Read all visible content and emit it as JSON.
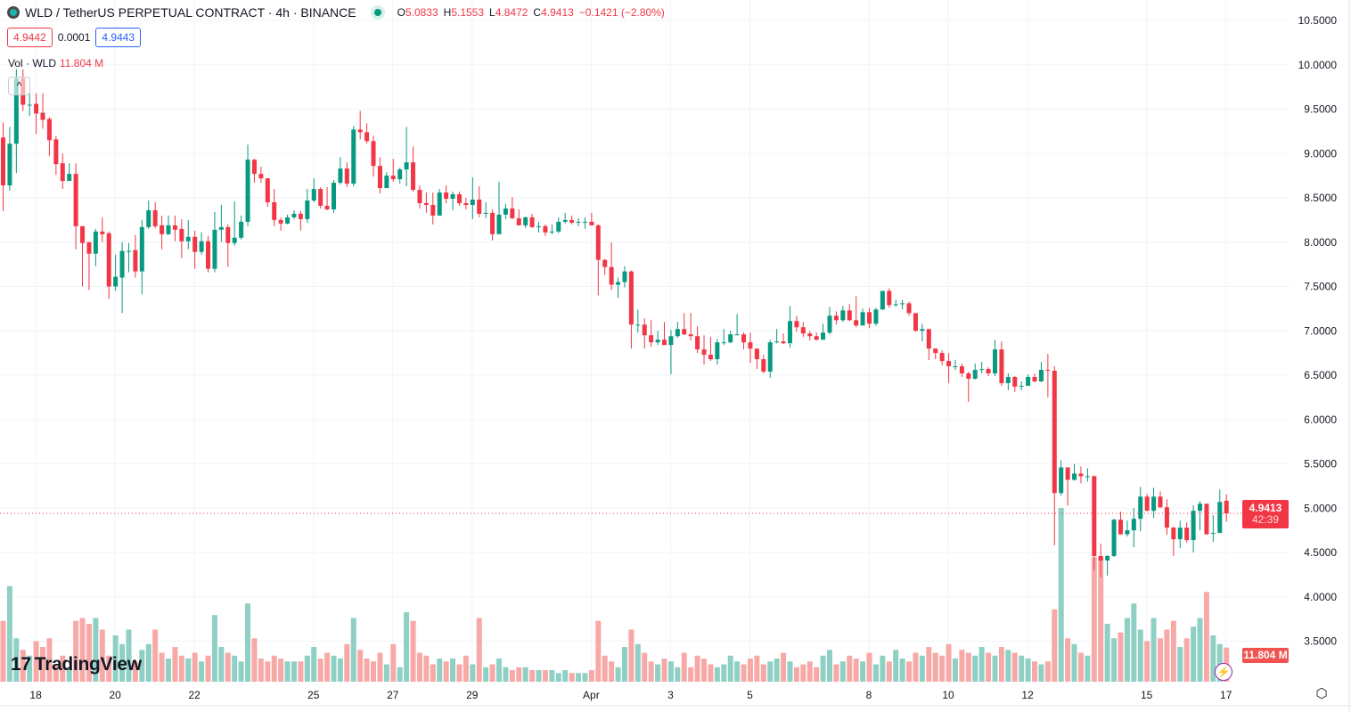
{
  "header": {
    "symbol_title": "WLD / TetherUS PERPETUAL CONTRACT · 4h · BINANCE",
    "ohlc": {
      "o_label": "O",
      "o": "5.0833",
      "h_label": "H",
      "h": "5.1553",
      "l_label": "L",
      "l": "4.8472",
      "c_label": "C",
      "c": "4.9413",
      "change": "−0.1421 (−2.80%)"
    },
    "bid": "4.9442",
    "spread": "0.0001",
    "ask": "4.9443",
    "volume_label": "Vol · WLD",
    "volume_value": "11.804 M",
    "collapse_icon": "^"
  },
  "price_tag": {
    "price": "4.9413",
    "countdown": "42:39"
  },
  "volume_tag": "11.804 M",
  "logo_text": "TradingView",
  "colors": {
    "up": "#089981",
    "down": "#f23645",
    "up_volume": "#8fd0c4",
    "down_volume": "#f7a9a7",
    "grid": "#f0f3fa"
  },
  "chart_data": {
    "type": "candlestick",
    "timeframe": "4h",
    "ylim": [
      3.5,
      10.5
    ],
    "y_ticks": [
      "10.5000",
      "10.0000",
      "9.5000",
      "9.0000",
      "8.5000",
      "8.0000",
      "7.5000",
      "7.0000",
      "6.5000",
      "6.0000",
      "5.5000",
      "5.0000",
      "4.5000",
      "4.0000",
      "3.5000"
    ],
    "x_ticks": [
      {
        "label": "18",
        "index": 5
      },
      {
        "label": "20",
        "index": 17
      },
      {
        "label": "22",
        "index": 29
      },
      {
        "label": "25",
        "index": 47
      },
      {
        "label": "27",
        "index": 59
      },
      {
        "label": "29",
        "index": 71
      },
      {
        "label": "Apr",
        "index": 89
      },
      {
        "label": "3",
        "index": 101
      },
      {
        "label": "5",
        "index": 113
      },
      {
        "label": "8",
        "index": 131
      },
      {
        "label": "10",
        "index": 143
      },
      {
        "label": "12",
        "index": 155
      },
      {
        "label": "15",
        "index": 173
      },
      {
        "label": "17",
        "index": 185
      }
    ],
    "grid": true,
    "ohlc": [
      [
        9.18,
        9.35,
        8.35,
        8.64
      ],
      [
        8.64,
        9.3,
        8.58,
        9.11
      ],
      [
        9.11,
        9.95,
        8.78,
        9.85
      ],
      [
        9.85,
        9.95,
        9.48,
        9.55
      ],
      [
        9.55,
        9.68,
        9.42,
        9.55
      ],
      [
        9.56,
        9.68,
        9.22,
        9.45
      ],
      [
        9.46,
        9.68,
        9.28,
        9.38
      ],
      [
        9.39,
        9.41,
        8.97,
        9.15
      ],
      [
        9.16,
        9.2,
        8.76,
        8.88
      ],
      [
        8.89,
        9.0,
        8.6,
        8.69
      ],
      [
        8.69,
        8.89,
        8.69,
        8.77
      ],
      [
        8.77,
        8.89,
        7.92,
        8.18
      ],
      [
        8.18,
        8.18,
        7.5,
        7.99
      ],
      [
        8.0,
        8.0,
        7.46,
        7.87
      ],
      [
        7.87,
        8.15,
        7.73,
        8.12
      ],
      [
        8.12,
        8.28,
        8.0,
        8.09
      ],
      [
        8.1,
        8.12,
        7.36,
        7.5
      ],
      [
        7.5,
        7.86,
        7.45,
        7.61
      ],
      [
        7.6,
        8.0,
        7.2,
        7.9
      ],
      [
        7.9,
        7.99,
        7.66,
        7.9
      ],
      [
        7.91,
        8.08,
        7.6,
        7.67
      ],
      [
        7.67,
        8.25,
        7.41,
        8.17
      ],
      [
        8.17,
        8.47,
        8.15,
        8.36
      ],
      [
        8.36,
        8.45,
        8.16,
        8.18
      ],
      [
        8.19,
        8.3,
        7.92,
        8.09
      ],
      [
        8.09,
        8.3,
        8.08,
        8.19
      ],
      [
        8.19,
        8.3,
        8.01,
        8.14
      ],
      [
        8.15,
        8.26,
        7.82,
        8.01
      ],
      [
        8.01,
        8.25,
        7.92,
        8.06
      ],
      [
        8.06,
        8.13,
        7.7,
        7.89
      ],
      [
        7.89,
        8.11,
        7.86,
        8.01
      ],
      [
        8.01,
        8.07,
        7.66,
        7.7
      ],
      [
        7.7,
        8.34,
        7.66,
        8.14
      ],
      [
        8.14,
        8.42,
        8.0,
        8.17
      ],
      [
        8.17,
        8.2,
        7.72,
        7.99
      ],
      [
        7.99,
        8.46,
        7.96,
        8.05
      ],
      [
        8.05,
        8.3,
        8.03,
        8.23
      ],
      [
        8.23,
        9.1,
        8.18,
        8.93
      ],
      [
        8.93,
        8.94,
        8.67,
        8.77
      ],
      [
        8.77,
        8.85,
        8.67,
        8.72
      ],
      [
        8.72,
        8.72,
        8.4,
        8.45
      ],
      [
        8.45,
        8.6,
        8.18,
        8.25
      ],
      [
        8.25,
        8.28,
        8.13,
        8.21
      ],
      [
        8.21,
        8.31,
        8.2,
        8.28
      ],
      [
        8.28,
        8.36,
        8.26,
        8.32
      ],
      [
        8.32,
        8.35,
        8.13,
        8.26
      ],
      [
        8.26,
        8.6,
        8.22,
        8.47
      ],
      [
        8.47,
        8.72,
        8.45,
        8.6
      ],
      [
        8.6,
        8.62,
        8.38,
        8.41
      ],
      [
        8.41,
        8.62,
        8.36,
        8.37
      ],
      [
        8.37,
        8.7,
        8.33,
        8.67
      ],
      [
        8.67,
        8.96,
        8.65,
        8.83
      ],
      [
        8.83,
        8.9,
        8.62,
        8.66
      ],
      [
        8.66,
        9.31,
        8.63,
        9.27
      ],
      [
        9.27,
        9.48,
        9.16,
        9.24
      ],
      [
        9.24,
        9.34,
        9.11,
        9.14
      ],
      [
        9.14,
        9.2,
        8.74,
        8.86
      ],
      [
        8.86,
        8.96,
        8.55,
        8.61
      ],
      [
        8.61,
        8.79,
        8.61,
        8.75
      ],
      [
        8.75,
        8.94,
        8.68,
        8.71
      ],
      [
        8.71,
        8.84,
        8.66,
        8.82
      ],
      [
        8.82,
        9.3,
        8.63,
        8.9
      ],
      [
        8.9,
        9.08,
        8.57,
        8.59
      ],
      [
        8.59,
        8.64,
        8.38,
        8.44
      ],
      [
        8.44,
        8.56,
        8.33,
        8.42
      ],
      [
        8.42,
        8.56,
        8.2,
        8.3
      ],
      [
        8.3,
        8.6,
        8.3,
        8.56
      ],
      [
        8.56,
        8.64,
        8.44,
        8.49
      ],
      [
        8.49,
        8.57,
        8.36,
        8.54
      ],
      [
        8.54,
        8.57,
        8.41,
        8.44
      ],
      [
        8.44,
        8.5,
        8.37,
        8.42
      ],
      [
        8.42,
        8.73,
        8.26,
        8.48
      ],
      [
        8.48,
        8.63,
        8.28,
        8.32
      ],
      [
        8.33,
        8.45,
        8.27,
        8.33
      ],
      [
        8.33,
        8.37,
        8.02,
        8.09
      ],
      [
        8.09,
        8.68,
        8.09,
        8.31
      ],
      [
        8.31,
        8.43,
        8.26,
        8.38
      ],
      [
        8.38,
        8.51,
        8.26,
        8.27
      ],
      [
        8.27,
        8.37,
        8.19,
        8.19
      ],
      [
        8.19,
        8.29,
        8.16,
        8.28
      ],
      [
        8.28,
        8.32,
        8.16,
        8.17
      ],
      [
        8.18,
        8.23,
        8.11,
        8.18
      ],
      [
        8.18,
        8.2,
        8.07,
        8.11
      ],
      [
        8.11,
        8.2,
        8.09,
        8.12
      ],
      [
        8.12,
        8.28,
        8.1,
        8.23
      ],
      [
        8.23,
        8.33,
        8.21,
        8.25
      ],
      [
        8.25,
        8.3,
        8.2,
        8.22
      ],
      [
        8.22,
        8.27,
        8.18,
        8.23
      ],
      [
        8.23,
        8.28,
        8.15,
        8.23
      ],
      [
        8.23,
        8.33,
        8.19,
        8.19
      ],
      [
        8.19,
        8.2,
        7.4,
        7.8
      ],
      [
        7.8,
        7.81,
        7.63,
        7.72
      ],
      [
        7.72,
        8.0,
        7.46,
        7.52
      ],
      [
        7.52,
        7.6,
        7.37,
        7.55
      ],
      [
        7.55,
        7.73,
        7.49,
        7.67
      ],
      [
        7.67,
        7.68,
        6.8,
        7.07
      ],
      [
        7.07,
        7.24,
        6.98,
        7.07
      ],
      [
        7.07,
        7.14,
        6.8,
        6.95
      ],
      [
        6.95,
        7.12,
        6.82,
        6.87
      ],
      [
        6.87,
        7.0,
        6.84,
        6.9
      ],
      [
        6.9,
        7.1,
        6.84,
        6.84
      ],
      [
        6.84,
        7.01,
        6.51,
        6.94
      ],
      [
        6.94,
        7.1,
        6.92,
        7.02
      ],
      [
        7.02,
        7.2,
        6.95,
        6.96
      ],
      [
        6.96,
        7.2,
        6.89,
        6.94
      ],
      [
        6.94,
        7.05,
        6.75,
        6.79
      ],
      [
        6.79,
        6.95,
        6.62,
        6.73
      ],
      [
        6.73,
        6.93,
        6.66,
        6.68
      ],
      [
        6.68,
        6.91,
        6.62,
        6.87
      ],
      [
        6.87,
        7.02,
        6.84,
        6.87
      ],
      [
        6.87,
        7.0,
        6.86,
        6.96
      ],
      [
        6.96,
        7.19,
        6.95,
        6.96
      ],
      [
        6.96,
        6.98,
        6.79,
        6.87
      ],
      [
        6.87,
        6.98,
        6.64,
        6.8
      ],
      [
        6.8,
        6.8,
        6.57,
        6.68
      ],
      [
        6.68,
        6.73,
        6.52,
        6.54
      ],
      [
        6.54,
        6.9,
        6.47,
        6.87
      ],
      [
        6.87,
        7.02,
        6.86,
        6.88
      ],
      [
        6.88,
        6.97,
        6.85,
        6.86
      ],
      [
        6.86,
        7.28,
        6.81,
        7.11
      ],
      [
        7.11,
        7.17,
        6.99,
        7.04
      ],
      [
        7.04,
        7.1,
        6.93,
        6.97
      ],
      [
        6.97,
        7.0,
        6.89,
        6.94
      ],
      [
        6.94,
        6.98,
        6.89,
        6.9
      ],
      [
        6.9,
        7.08,
        6.9,
        6.98
      ],
      [
        6.98,
        7.27,
        6.96,
        7.17
      ],
      [
        7.17,
        7.22,
        7.07,
        7.12
      ],
      [
        7.12,
        7.28,
        7.1,
        7.23
      ],
      [
        7.23,
        7.3,
        7.11,
        7.12
      ],
      [
        7.12,
        7.39,
        7.04,
        7.06
      ],
      [
        7.06,
        7.25,
        7.06,
        7.21
      ],
      [
        7.21,
        7.26,
        7.03,
        7.08
      ],
      [
        7.08,
        7.26,
        7.06,
        7.24
      ],
      [
        7.24,
        7.45,
        7.24,
        7.45
      ],
      [
        7.45,
        7.48,
        7.26,
        7.29
      ],
      [
        7.3,
        7.35,
        7.27,
        7.3
      ],
      [
        7.3,
        7.35,
        7.24,
        7.31
      ],
      [
        7.31,
        7.33,
        7.17,
        7.2
      ],
      [
        7.2,
        7.2,
        6.99,
        7.0
      ],
      [
        7.0,
        7.08,
        6.88,
        7.02
      ],
      [
        7.02,
        7.02,
        6.67,
        6.8
      ],
      [
        6.8,
        6.8,
        6.68,
        6.75
      ],
      [
        6.75,
        6.78,
        6.61,
        6.66
      ],
      [
        6.66,
        6.75,
        6.41,
        6.6
      ],
      [
        6.6,
        6.67,
        6.56,
        6.6
      ],
      [
        6.6,
        6.63,
        6.48,
        6.52
      ],
      [
        6.52,
        6.54,
        6.2,
        6.46
      ],
      [
        6.46,
        6.63,
        6.45,
        6.56
      ],
      [
        6.56,
        6.65,
        6.52,
        6.57
      ],
      [
        6.57,
        6.59,
        6.49,
        6.52
      ],
      [
        6.52,
        6.9,
        6.49,
        6.79
      ],
      [
        6.79,
        6.88,
        6.38,
        6.41
      ],
      [
        6.41,
        6.52,
        6.33,
        6.48
      ],
      [
        6.48,
        6.49,
        6.31,
        6.37
      ],
      [
        6.38,
        6.43,
        6.33,
        6.38
      ],
      [
        6.38,
        6.51,
        6.38,
        6.48
      ],
      [
        6.48,
        6.52,
        6.42,
        6.43
      ],
      [
        6.43,
        6.65,
        6.42,
        6.56
      ],
      [
        6.56,
        6.74,
        6.25,
        6.55
      ],
      [
        6.55,
        6.6,
        4.58,
        5.17
      ],
      [
        5.17,
        5.54,
        5.14,
        5.46
      ],
      [
        5.46,
        5.46,
        5.03,
        5.32
      ],
      [
        5.32,
        5.5,
        5.31,
        5.39
      ],
      [
        5.39,
        5.47,
        5.28,
        5.36
      ],
      [
        5.36,
        5.45,
        5.3,
        5.36
      ],
      [
        5.36,
        5.37,
        4.3,
        4.46
      ],
      [
        4.46,
        4.6,
        4.22,
        4.41
      ],
      [
        4.41,
        4.47,
        4.24,
        4.46
      ],
      [
        4.46,
        4.88,
        4.45,
        4.87
      ],
      [
        4.87,
        4.96,
        4.7,
        4.705
      ],
      [
        4.705,
        4.86,
        4.68,
        4.75
      ],
      [
        4.75,
        5.0,
        4.56,
        4.88
      ],
      [
        4.88,
        5.24,
        4.74,
        5.13
      ],
      [
        5.13,
        5.16,
        4.97,
        4.97
      ],
      [
        4.97,
        5.23,
        4.89,
        5.13
      ],
      [
        5.13,
        5.19,
        5.0,
        5.01
      ],
      [
        5.01,
        5.1,
        4.7,
        4.78
      ],
      [
        4.78,
        4.79,
        4.46,
        4.65
      ],
      [
        4.65,
        4.86,
        4.55,
        4.78
      ],
      [
        4.78,
        4.84,
        4.61,
        4.64
      ],
      [
        4.64,
        5.03,
        4.5,
        4.97
      ],
      [
        4.97,
        5.08,
        4.75,
        5.05
      ],
      [
        5.05,
        5.05,
        4.7,
        4.705
      ],
      [
        4.72,
        4.92,
        4.62,
        4.72
      ],
      [
        4.72,
        5.21,
        4.72,
        5.07
      ],
      [
        5.0833,
        5.1553,
        4.8472,
        4.9413
      ]
    ],
    "volume_millions": [
      21,
      33,
      15,
      11,
      9,
      14,
      12,
      15,
      6,
      9,
      5,
      21,
      22,
      20,
      22,
      18,
      9,
      16,
      13,
      18,
      7,
      11,
      13,
      18,
      10,
      8,
      12,
      9,
      8,
      10,
      7,
      9,
      23,
      12,
      10,
      9,
      7,
      27,
      15,
      8,
      7,
      9,
      8,
      7,
      7,
      7,
      9,
      12,
      8,
      10,
      9,
      8,
      13,
      22,
      11,
      8,
      7,
      10,
      6,
      13,
      5,
      24,
      21,
      10,
      9,
      6,
      8,
      7,
      8,
      6,
      9,
      6,
      22,
      5,
      6,
      8,
      5,
      4,
      5,
      5,
      4,
      4,
      4,
      4,
      3,
      4,
      3,
      3,
      3,
      4,
      21,
      9,
      7,
      5,
      12,
      18,
      13,
      10,
      7,
      6,
      8,
      7,
      5,
      10,
      5,
      9,
      8,
      6,
      5,
      6,
      9,
      7,
      6,
      8,
      9,
      6,
      7,
      8,
      10,
      7,
      5,
      6,
      7,
      5,
      9,
      11,
      6,
      7,
      9,
      8,
      7,
      10,
      6,
      9,
      7,
      11,
      8,
      7,
      10,
      9,
      12,
      10,
      9,
      13,
      8,
      11,
      10,
      9,
      12,
      10,
      9,
      12,
      11,
      10,
      9,
      8,
      7,
      6,
      7,
      25,
      60,
      15,
      13,
      10,
      9,
      43,
      43,
      20,
      15,
      17,
      22,
      27,
      18,
      14,
      22,
      15,
      18,
      21,
      12,
      15,
      19,
      22,
      31,
      16,
      13,
      11.804
    ]
  }
}
